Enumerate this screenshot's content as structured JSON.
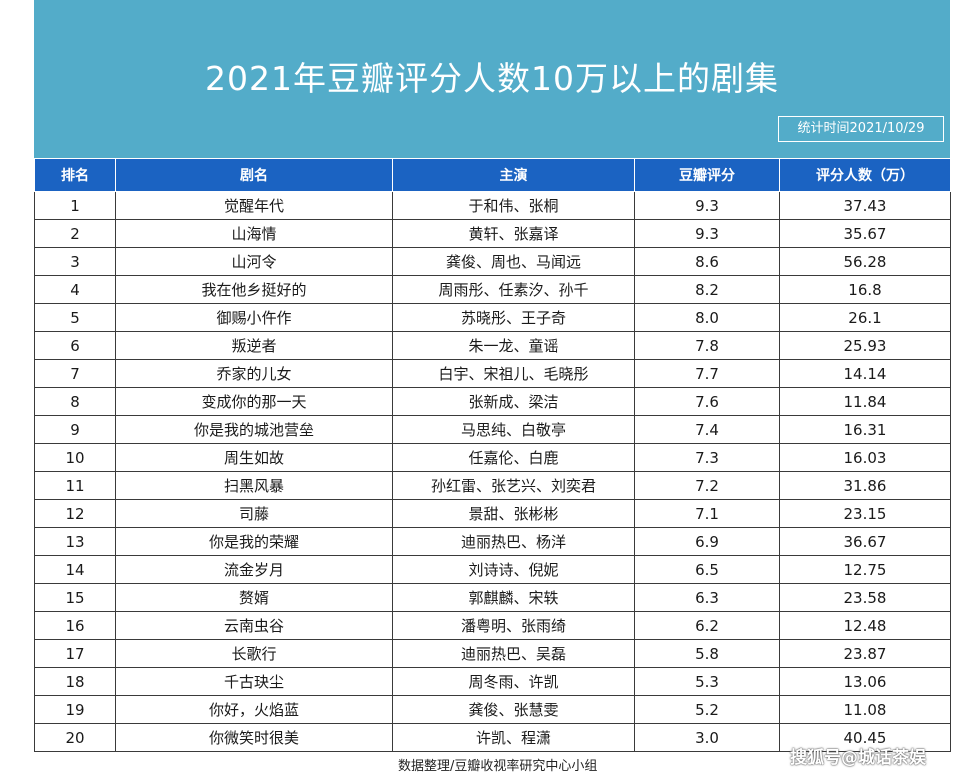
{
  "header": {
    "title": "2021年豆瓣评分人数10万以上的剧集",
    "stat_time": "统计时间2021/10/29"
  },
  "table": {
    "headers": [
      "排名",
      "剧名",
      "主演",
      "豆瓣评分",
      "评分人数（万）"
    ],
    "rows": [
      [
        "1",
        "觉醒年代",
        "于和伟、张桐",
        "9.3",
        "37.43"
      ],
      [
        "2",
        "山海情",
        "黄轩、张嘉译",
        "9.3",
        "35.67"
      ],
      [
        "3",
        "山河令",
        "龚俊、周也、马闻远",
        "8.6",
        "56.28"
      ],
      [
        "4",
        "我在他乡挺好的",
        "周雨彤、任素汐、孙千",
        "8.2",
        "16.8"
      ],
      [
        "5",
        "御赐小仵作",
        "苏晓彤、王子奇",
        "8.0",
        "26.1"
      ],
      [
        "6",
        "叛逆者",
        "朱一龙、童谣",
        "7.8",
        "25.93"
      ],
      [
        "7",
        "乔家的儿女",
        "白宇、宋祖儿、毛晓彤",
        "7.7",
        "14.14"
      ],
      [
        "8",
        "变成你的那一天",
        "张新成、梁洁",
        "7.6",
        "11.84"
      ],
      [
        "9",
        "你是我的城池营垒",
        "马思纯、白敬亭",
        "7.4",
        "16.31"
      ],
      [
        "10",
        "周生如故",
        "任嘉伦、白鹿",
        "7.3",
        "16.03"
      ],
      [
        "11",
        "扫黑风暴",
        "孙红雷、张艺兴、刘奕君",
        "7.2",
        "31.86"
      ],
      [
        "12",
        "司藤",
        "景甜、张彬彬",
        "7.1",
        "23.15"
      ],
      [
        "13",
        "你是我的荣耀",
        "迪丽热巴、杨洋",
        "6.9",
        "36.67"
      ],
      [
        "14",
        "流金岁月",
        "刘诗诗、倪妮",
        "6.5",
        "12.75"
      ],
      [
        "15",
        "赘婿",
        "郭麒麟、宋轶",
        "6.3",
        "23.58"
      ],
      [
        "16",
        "云南虫谷",
        "潘粤明、张雨绮",
        "6.2",
        "12.48"
      ],
      [
        "17",
        "长歌行",
        "迪丽热巴、吴磊",
        "5.8",
        "23.87"
      ],
      [
        "18",
        "千古玦尘",
        "周冬雨、许凯",
        "5.3",
        "13.06"
      ],
      [
        "19",
        "你好，火焰蓝",
        "龚俊、张慧雯",
        "5.2",
        "11.08"
      ],
      [
        "20",
        "你微笑时很美",
        "许凯、程潇",
        "3.0",
        "40.45"
      ]
    ]
  },
  "footer": {
    "source": "数据整理/豆瓣收视率研究中心小组",
    "watermark": "搜狐号@城话茶娱"
  },
  "colors": {
    "banner": "#53acc9",
    "header_row": "#1b63c2"
  }
}
